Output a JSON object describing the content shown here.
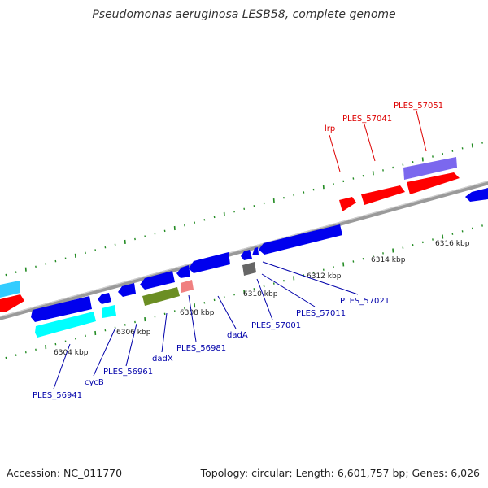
{
  "title": "Pseudomonas aeruginosa LESB58, complete genome",
  "footer": {
    "accession": "Accession: NC_011770",
    "summary": "Topology: circular; Length: 6,601,757 bp; Genes: 6,026"
  },
  "colors": {
    "backbone": "#888888",
    "tick": "#228B22",
    "forward_gene": "#ff0000",
    "reverse_gene": "#0000ee",
    "rna_cyan": "#00ffff",
    "olive": "#6b8e23",
    "pink": "#f08080",
    "purple": "#7b68ee",
    "gray": "#666666",
    "label_red": "#dd0000",
    "label_blue": "#0000aa"
  },
  "scale_labels": [
    "6304 kbp",
    "6306 kbp",
    "6308 kbp",
    "6310 kbp",
    "6312 kbp",
    "6314 kbp",
    "6316 kbp"
  ],
  "gene_labels_top": [
    "lrp",
    "PLES_57041",
    "PLES_57051"
  ],
  "gene_labels_bottom": [
    "PLES_56941",
    "cycB",
    "PLES_56961",
    "dadX",
    "PLES_56981",
    "dadA",
    "PLES_57001",
    "PLES_57011",
    "PLES_57021"
  ]
}
